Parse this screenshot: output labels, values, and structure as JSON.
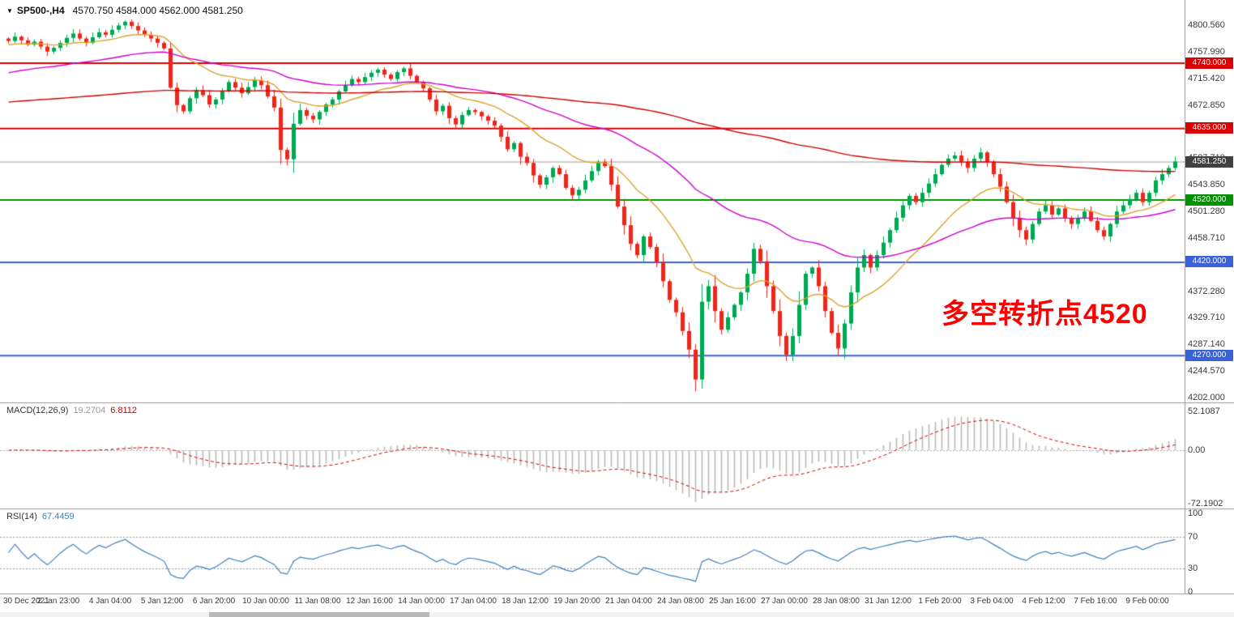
{
  "header": {
    "collapse_icon": "▼",
    "symbol_period": "SP500-,H4",
    "ohlc": "4570.750 4584.000 4562.000 4581.250"
  },
  "annotation": {
    "text": "多空转折点4520",
    "color": "#ff0000"
  },
  "chart_data": {
    "type": "candlestick",
    "title": "SP500-,H4",
    "ohlc_display": "4570.750 4584.000 4562.000 4581.250",
    "y_range": {
      "top": 4800.56,
      "bottom": 4202.0
    },
    "up_color": "#00a651",
    "down_color": "#e8281e",
    "closes": [
      4775,
      4782,
      4776,
      4769,
      4774,
      4766,
      4758,
      4764,
      4772,
      4780,
      4787,
      4779,
      4772,
      4781,
      4789,
      4785,
      4793,
      4800,
      4806,
      4799,
      4792,
      4785,
      4779,
      4772,
      4763,
      4700,
      4672,
      4662,
      4683,
      4696,
      4688,
      4673,
      4681,
      4694,
      4709,
      4700,
      4691,
      4701,
      4712,
      4704,
      4686,
      4668,
      4600,
      4585,
      4642,
      4664,
      4655,
      4649,
      4661,
      4673,
      4681,
      4694,
      4704,
      4714,
      4709,
      4717,
      4724,
      4729,
      4721,
      4714,
      4725,
      4731,
      4719,
      4709,
      4699,
      4681,
      4662,
      4671,
      4651,
      4641,
      4656,
      4664,
      4661,
      4654,
      4647,
      4639,
      4621,
      4601,
      4611,
      4589,
      4579,
      4559,
      4544,
      4556,
      4571,
      4561,
      4539,
      4527,
      4536,
      4551,
      4566,
      4581,
      4574,
      4544,
      4509,
      4479,
      4449,
      4431,
      4461,
      4444,
      4419,
      4389,
      4359,
      4339,
      4309,
      4279,
      4231,
      4356,
      4381,
      4341,
      4311,
      4331,
      4351,
      4371,
      4401,
      4441,
      4421,
      4381,
      4341,
      4301,
      4271,
      4301,
      4351,
      4401,
      4411,
      4381,
      4341,
      4306,
      4281,
      4321,
      4371,
      4411,
      4431,
      4411,
      4431,
      4451,
      4471,
      4491,
      4511,
      4526,
      4516,
      4531,
      4546,
      4561,
      4576,
      4586,
      4591,
      4581,
      4571,
      4586,
      4596,
      4581,
      4561,
      4541,
      4516,
      4491,
      4471,
      4456,
      4481,
      4501,
      4511,
      4496,
      4506,
      4491,
      4481,
      4491,
      4501,
      4486,
      4471,
      4461,
      4481,
      4501,
      4511,
      4521,
      4531,
      4516,
      4531,
      4551,
      4561,
      4571,
      4581.25
    ],
    "wick_overrides": {
      "18": {
        "high": 4808.5
      },
      "43": {
        "low": 4575
      },
      "106": {
        "low": 4212
      },
      "120": {
        "low": 4261
      },
      "128": {
        "low": 4268
      }
    },
    "levels": [
      {
        "price": 4740.0,
        "label": "4740.000",
        "color": "#dd0000",
        "width": 2
      },
      {
        "price": 4635.0,
        "label": "4635.000",
        "color": "#dd0000",
        "width": 2
      },
      {
        "price": 4581.25,
        "label": "4581.250",
        "color": "#9f9f9f",
        "tag_color": "#404040",
        "width": 1
      },
      {
        "price": 4520.0,
        "label": "4520.000",
        "color": "#009100",
        "width": 2
      },
      {
        "price": 4420.0,
        "label": "4420.000",
        "color": "#3a62d8",
        "width": 2
      },
      {
        "price": 4270.0,
        "label": "4270.000",
        "color": "#3a62d8",
        "width": 2
      }
    ],
    "moving_averages": [
      {
        "name": "fast-ma",
        "period": 18,
        "seed": 4768,
        "color": "#dda030"
      },
      {
        "name": "medium-ma",
        "period": 55,
        "seed": 4722,
        "color": "#cc00cc"
      },
      {
        "name": "slow-ma",
        "period": 240,
        "seed": 4676,
        "color": "#cc0000"
      }
    ],
    "y_ticks": [
      "4800.560",
      "4757.990",
      "4715.420",
      "4672.850",
      "4630.280",
      "4587.710",
      "4543.850",
      "4501.280",
      "4458.710",
      "4416.140",
      "4372.280",
      "4329.710",
      "4287.140",
      "4244.570",
      "4202.000"
    ],
    "x_labels": [
      "30 Dec 2021",
      "2 Jan 23:00",
      "4 Jan 04:00",
      "5 Jan 12:00",
      "6 Jan 20:00",
      "10 Jan 00:00",
      "11 Jan 08:00",
      "12 Jan 16:00",
      "14 Jan 00:00",
      "17 Jan 04:00",
      "18 Jan 12:00",
      "19 Jan 20:00",
      "21 Jan 04:00",
      "24 Jan 08:00",
      "25 Jan 16:00",
      "27 Jan 00:00",
      "28 Jan 08:00",
      "31 Jan 12:00",
      "1 Feb 20:00",
      "3 Feb 04:00",
      "4 Feb 12:00",
      "7 Feb 16:00",
      "9 Feb 00:00"
    ],
    "macd": {
      "label": "MACD(12,26,9)",
      "main": "19.2704",
      "signal": "6.8112",
      "ticks": [
        "52.1087",
        "0.00",
        "-72.1902"
      ],
      "hist_color": "#b6b6b6",
      "signal_color": "#d00000",
      "params": {
        "fast": 12,
        "slow": 26,
        "signal": 9
      }
    },
    "rsi": {
      "label": "RSI(14)",
      "value": "67.4459",
      "ticks": [
        "100",
        "70",
        "30",
        "0"
      ],
      "levels": [
        70,
        30
      ],
      "color": "#3f7fbf",
      "period": 14
    }
  }
}
